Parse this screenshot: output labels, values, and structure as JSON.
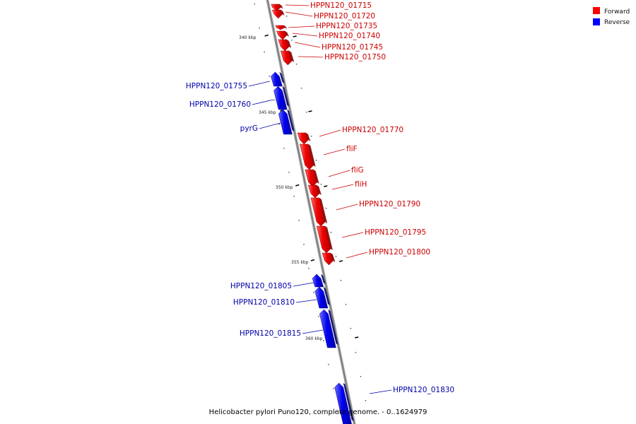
{
  "legend": {
    "forward": {
      "label": "Forward",
      "color": "#ff0000"
    },
    "reverse": {
      "label": "Reverse",
      "color": "#0000ff"
    }
  },
  "caption": "Helicobacter pylori Puno120, complete genome. - 0..1624979",
  "chart_data": {
    "type": "genome-map",
    "units": "kbp",
    "ticks": [
      "340 kbp",
      "345 kbp",
      "350 kbp",
      "355 kbp",
      "360 kbp"
    ],
    "genes": [
      {
        "name": "HPPN120_01715",
        "strand": "forward"
      },
      {
        "name": "HPPN120_01720",
        "strand": "forward"
      },
      {
        "name": "HPPN120_01735",
        "strand": "forward"
      },
      {
        "name": "HPPN120_01740",
        "strand": "forward"
      },
      {
        "name": "HPPN120_01745",
        "strand": "forward"
      },
      {
        "name": "HPPN120_01750",
        "strand": "forward"
      },
      {
        "name": "HPPN120_01755",
        "strand": "reverse"
      },
      {
        "name": "HPPN120_01760",
        "strand": "reverse"
      },
      {
        "name": "pyrG",
        "strand": "reverse"
      },
      {
        "name": "HPPN120_01770",
        "strand": "forward"
      },
      {
        "name": "fliF",
        "strand": "forward"
      },
      {
        "name": "fliG",
        "strand": "forward"
      },
      {
        "name": "fliH",
        "strand": "forward"
      },
      {
        "name": "HPPN120_01790",
        "strand": "forward"
      },
      {
        "name": "HPPN120_01795",
        "strand": "forward"
      },
      {
        "name": "HPPN120_01800",
        "strand": "forward"
      },
      {
        "name": "HPPN120_01805",
        "strand": "reverse"
      },
      {
        "name": "HPPN120_01810",
        "strand": "reverse"
      },
      {
        "name": "HPPN120_01815",
        "strand": "reverse"
      },
      {
        "name": "HPPN120_01830",
        "strand": "reverse"
      }
    ]
  }
}
